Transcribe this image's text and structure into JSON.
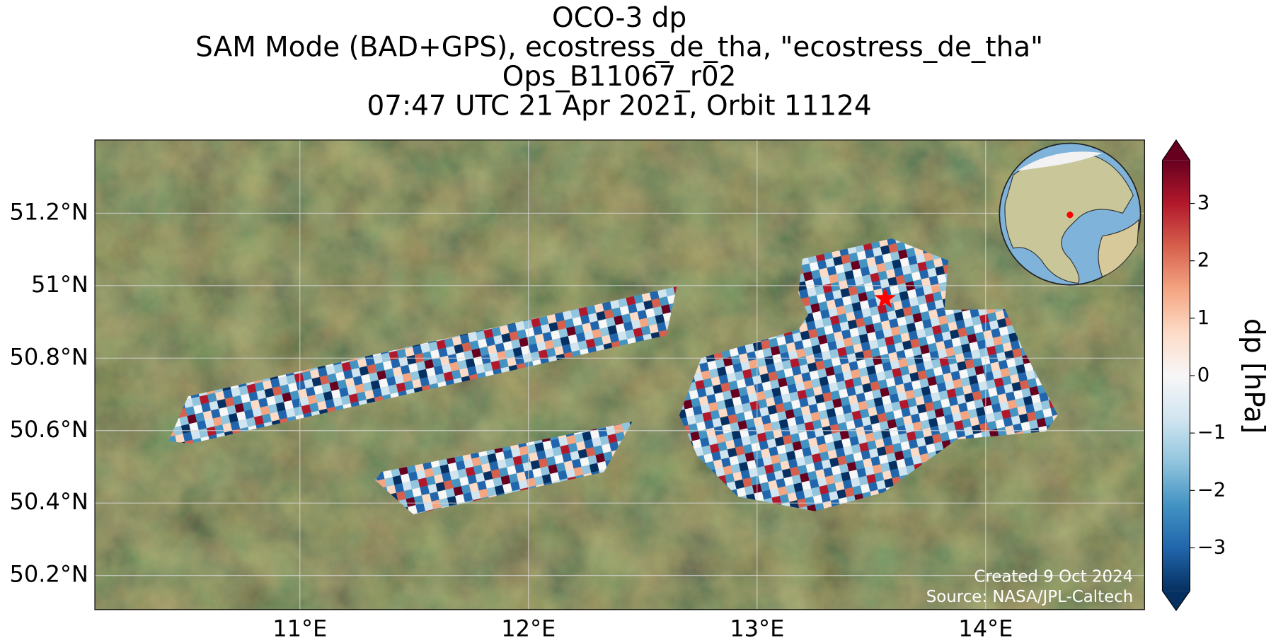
{
  "chart_data": {
    "type": "map",
    "title_lines": [
      "OCO-3 dp",
      "SAM Mode (BAD+GPS), ecostress_de_tha, \"ecostress_de_tha\"",
      "Ops_B11067_r02",
      "07:47 UTC 21 Apr 2021, Orbit 11124"
    ],
    "xlim": [
      10.103,
      14.695
    ],
    "ylim": [
      50.106,
      51.402
    ],
    "xticks": [
      {
        "value": 11,
        "label": "11°E"
      },
      {
        "value": 12,
        "label": "12°E"
      },
      {
        "value": 13,
        "label": "13°E"
      },
      {
        "value": 14,
        "label": "14°E"
      }
    ],
    "yticks": [
      {
        "value": 50.2,
        "label": "50.2°N"
      },
      {
        "value": 50.4,
        "label": "50.4°N"
      },
      {
        "value": 50.6,
        "label": "50.6°N"
      },
      {
        "value": 50.8,
        "label": "50.8°N"
      },
      {
        "value": 51,
        "label": "51°N"
      },
      {
        "value": 51.2,
        "label": "51.2°N"
      }
    ],
    "grid": true,
    "target_location": {
      "lon": 13.56,
      "lat": 50.964,
      "color": "#ff0000"
    },
    "colorbar": {
      "label": "dp [hPa]",
      "clim": [
        -3.75,
        3.75
      ],
      "ticks": [
        {
          "value": -3,
          "label": "−3"
        },
        {
          "value": -2,
          "label": "−2"
        },
        {
          "value": -1,
          "label": "−1"
        },
        0,
        1,
        2,
        3
      ],
      "colors": [
        "#053061",
        "#2166ac",
        "#4393c3",
        "#92c5de",
        "#d1e5f0",
        "#f7f7f7",
        "#fddbc7",
        "#f4a582",
        "#d6604d",
        "#b2182b",
        "#67001f"
      ]
    },
    "annotations": [
      "Created 9 Oct 2024",
      "Source: NASA/JPL-Caltech"
    ]
  }
}
